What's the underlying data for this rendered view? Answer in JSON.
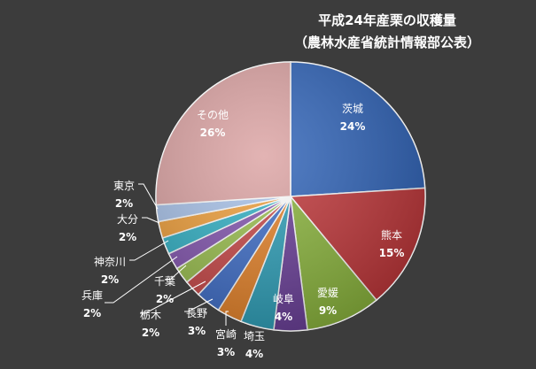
{
  "chart_data": {
    "type": "pie",
    "title": "平成24年産栗の収穫量",
    "subtitle": "（農林水産省統計情報部公表）",
    "slices": [
      {
        "label": "茨城",
        "value": 24,
        "display": "24%",
        "color": "#2f63b8"
      },
      {
        "label": "熊本",
        "value": 15,
        "display": "15%",
        "color": "#c0373a"
      },
      {
        "label": "愛媛",
        "value": 9,
        "display": "9%",
        "color": "#8bb53d"
      },
      {
        "label": "岐阜",
        "value": 4,
        "display": "4%",
        "color": "#6a3f98"
      },
      {
        "label": "埼玉",
        "value": 4,
        "display": "4%",
        "color": "#2e9fb8"
      },
      {
        "label": "宮崎",
        "value": 3,
        "display": "3%",
        "color": "#e5832a"
      },
      {
        "label": "長野",
        "value": 3,
        "display": "3%",
        "color": "#3f6ec8"
      },
      {
        "label": "栃木",
        "value": 2,
        "display": "2%",
        "color": "#c84848"
      },
      {
        "label": "千葉",
        "value": 2,
        "display": "2%",
        "color": "#9bc04f"
      },
      {
        "label": "兵庫",
        "value": 2,
        "display": "2%",
        "color": "#8456b0"
      },
      {
        "label": "神奈川",
        "value": 2,
        "display": "2%",
        "color": "#33b2c6"
      },
      {
        "label": "大分",
        "value": 2,
        "display": "2%",
        "color": "#f0a03c"
      },
      {
        "label": "東京",
        "value": 2,
        "display": "2%",
        "color": "#a9c3ea"
      },
      {
        "label": "その他",
        "value": 26,
        "display": "26%",
        "color": "#dca3a3"
      }
    ],
    "legend": "none"
  }
}
